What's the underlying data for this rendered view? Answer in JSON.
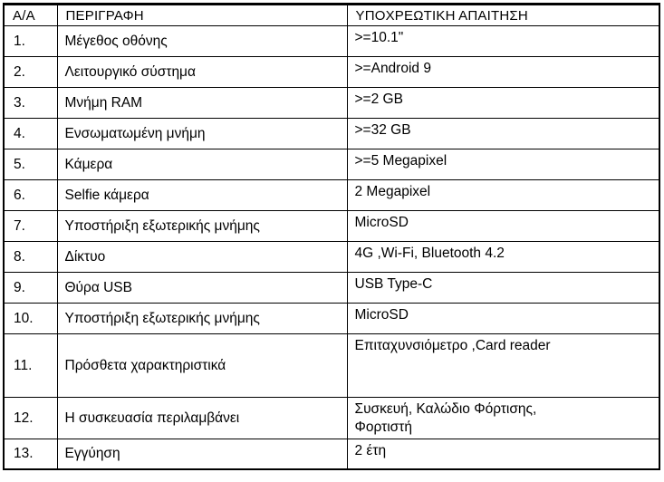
{
  "table": {
    "title_semantic": "tablet-technical-specifications",
    "colors": {
      "border": "#000000",
      "background": "#ffffff",
      "text": "#000000"
    },
    "header": {
      "num": "Α/Α",
      "description": "ΠΕΡΙΓΡΑΦΗ",
      "requirement": "ΥΠΟΧΡΕΩΤΙΚΗ ΑΠΑΙΤΗΣΗ"
    },
    "rows": [
      {
        "num": "1.",
        "description": "Μέγεθος οθόνης",
        "requirement": ">=10.1\""
      },
      {
        "num": "2.",
        "description": "Λειτουργικό σύστημα",
        "requirement": ">=Android 9"
      },
      {
        "num": "3.",
        "description": "Μνήμη RAM",
        "requirement": ">=2 GB"
      },
      {
        "num": "4.",
        "description": "Ενσωματωμένη μνήμη",
        "requirement": ">=32 GB"
      },
      {
        "num": "5.",
        "description": "Κάμερα",
        "requirement": ">=5 Megapixel"
      },
      {
        "num": "6.",
        "description": "Selfie κάμερα",
        "requirement": "2 Megapixel"
      },
      {
        "num": "7.",
        "description": "Υποστήριξη εξωτερικής μνήμης",
        "requirement": "MicroSD"
      },
      {
        "num": "8.",
        "description": "Δίκτυο",
        "requirement": "4G ,Wi-Fi, Bluetooth 4.2"
      },
      {
        "num": "9.",
        "description": "Θύρα USB",
        "requirement": "USB Type-C"
      },
      {
        "num": "10.",
        "description": "Υποστήριξη εξωτερικής μνήμης",
        "requirement": "MicroSD"
      },
      {
        "num": "11.",
        "description": "Πρόσθετα χαρακτηριστικά",
        "requirement": "Επιταχυνσιόμετρο ,Card reader"
      },
      {
        "num": "12.",
        "description": "Η συσκευασία περιλαμβάνει",
        "requirement": "Συσκευή, Καλώδιο Φόρτισης,\nΦορτιστή"
      },
      {
        "num": "13.",
        "description": "Εγγύηση",
        "requirement": "2 έτη"
      }
    ]
  }
}
